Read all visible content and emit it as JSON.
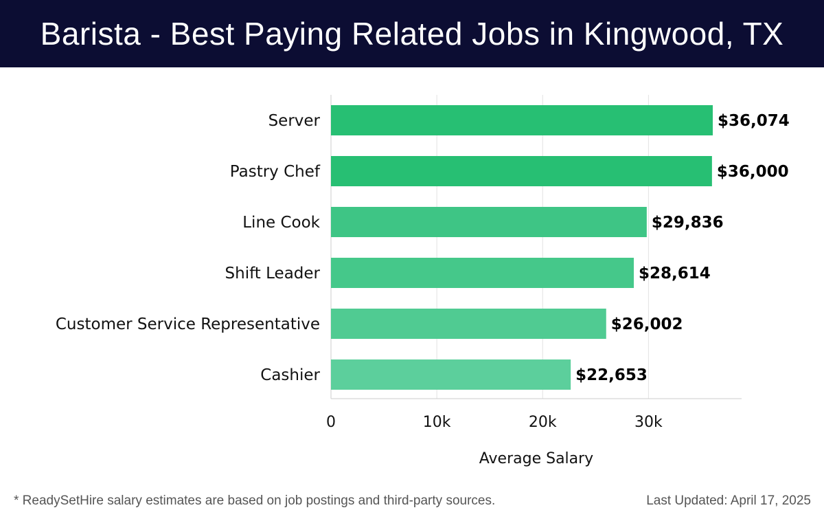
{
  "header": {
    "title": "Barista - Best Paying Related Jobs in Kingwood, TX"
  },
  "chart_data": {
    "type": "bar",
    "orientation": "horizontal",
    "categories": [
      "Server",
      "Pastry Chef",
      "Line Cook",
      "Shift Leader",
      "Customer Service Representative",
      "Cashier"
    ],
    "values": [
      36074,
      36000,
      29836,
      28614,
      26002,
      22653
    ],
    "value_labels": [
      "$36,074",
      "$36,000",
      "$29,836",
      "$28,614",
      "$26,002",
      "$22,653"
    ],
    "bar_colors": [
      "#27bf73",
      "#27bf73",
      "#3ec585",
      "#45c88a",
      "#50cb92",
      "#5ccf9c"
    ],
    "xlabel": "Average Salary",
    "ylabel": "",
    "xlim": [
      0,
      38000
    ],
    "x_ticks": [
      0,
      10000,
      20000,
      30000
    ],
    "x_tick_labels": [
      "0",
      "10k",
      "20k",
      "30k"
    ],
    "grid": "vertical"
  },
  "footer": {
    "note": "* ReadySetHire salary estimates are based on job postings and third-party sources.",
    "updated": "Last Updated: April 17, 2025"
  }
}
